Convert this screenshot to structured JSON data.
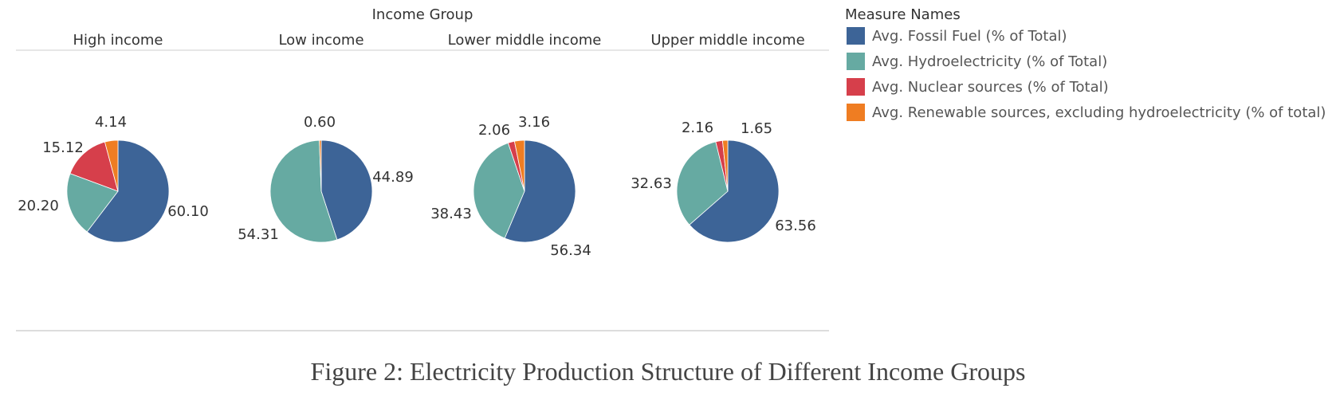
{
  "caption": "Figure 2: Electricity Production Structure of Different Income Groups",
  "chart_data": {
    "type": "pie",
    "column_header": "Income Group",
    "legend_title": "Measure Names",
    "legend_position": "right",
    "series": [
      {
        "name": "Avg. Fossil Fuel (% of Total)",
        "color": "#3d6497"
      },
      {
        "name": "Avg. Hydroelectricity (% of Total)",
        "color": "#66aaa2"
      },
      {
        "name": "Avg. Nuclear sources (% of Total)",
        "color": "#d63f4b"
      },
      {
        "name": "Avg. Renewable sources, excluding hydroelectricity (% of total)",
        "color": "#ef7d22"
      }
    ],
    "groups": [
      {
        "name": "High income",
        "values": [
          60.1,
          20.2,
          15.12,
          4.14
        ],
        "labels": [
          "60.10",
          "20.20",
          "15.12",
          "4.14"
        ]
      },
      {
        "name": "Low income",
        "values": [
          44.89,
          54.31,
          0,
          0.6
        ],
        "labels": [
          "44.89",
          "54.31",
          "",
          "0.60"
        ]
      },
      {
        "name": "Lower middle income",
        "values": [
          56.34,
          38.43,
          2.06,
          3.16
        ],
        "labels": [
          "56.34",
          "38.43",
          "2.06",
          "3.16"
        ]
      },
      {
        "name": "Upper middle income",
        "values": [
          63.56,
          32.63,
          2.16,
          1.65
        ],
        "labels": [
          "63.56",
          "32.63",
          "2.16",
          "1.65"
        ]
      }
    ]
  }
}
